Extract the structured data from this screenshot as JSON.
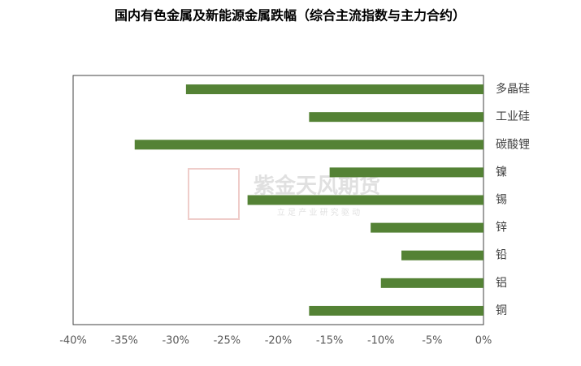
{
  "chart_data": {
    "type": "bar",
    "orientation": "horizontal",
    "title": "国内有色金属及新能源金属跌幅（综合主流指数与主力合约）",
    "categories": [
      "多晶硅",
      "工业硅",
      "碳酸锂",
      "镍",
      "锡",
      "锌",
      "铅",
      "铝",
      "铜"
    ],
    "values": [
      -29,
      -17,
      -34,
      -15,
      -23,
      -11,
      -8,
      -10,
      -17
    ],
    "color": "#548235",
    "xlim": [
      -40,
      0
    ],
    "xticks": [
      {
        "value": -40,
        "label": "-40%"
      },
      {
        "value": -35,
        "label": "-35%"
      },
      {
        "value": -30,
        "label": "-30%"
      },
      {
        "value": -25,
        "label": "-25%"
      },
      {
        "value": -20,
        "label": "-20%"
      },
      {
        "value": -15,
        "label": "-15%"
      },
      {
        "value": -10,
        "label": "-10%"
      },
      {
        "value": -5,
        "label": "-5%"
      },
      {
        "value": 0,
        "label": "0%"
      }
    ],
    "grid": false,
    "watermark": {
      "name": "紫金天风期货",
      "slogan": "立 足 产 业 研 究 驱 动"
    }
  }
}
